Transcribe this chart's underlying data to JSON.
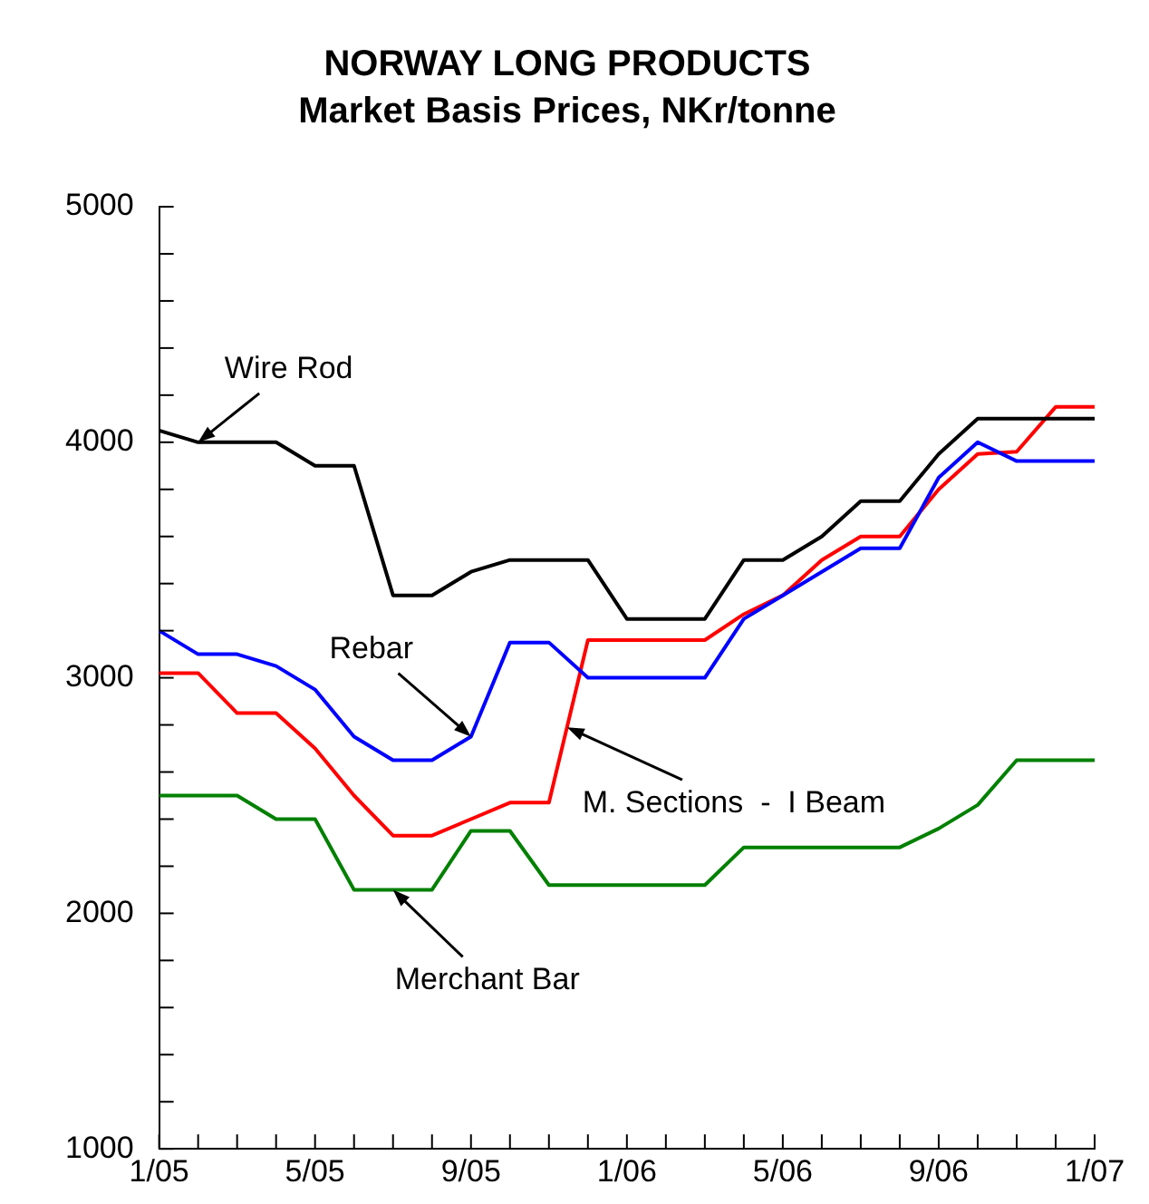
{
  "chart_data": {
    "type": "line",
    "title": "NORWAY LONG PRODUCTS",
    "subtitle": "Market Basis Prices, NKr/tonne",
    "x": [
      "2005-01",
      "2005-02",
      "2005-03",
      "2005-04",
      "2005-05",
      "2005-06",
      "2005-07",
      "2005-08",
      "2005-09",
      "2005-10",
      "2005-11",
      "2005-12",
      "2006-01",
      "2006-02",
      "2006-03",
      "2006-04",
      "2006-05",
      "2006-06",
      "2006-07",
      "2006-08",
      "2006-09",
      "2006-10",
      "2006-11",
      "2006-12",
      "2007-01"
    ],
    "series": [
      {
        "color": "#000000",
        "values": [
          4050,
          4000,
          4000,
          4000,
          3900,
          3900,
          3350,
          3350,
          3450,
          3500,
          3500,
          3500,
          3250,
          3250,
          3250,
          3500,
          3500,
          3600,
          3750,
          3750,
          3950,
          4100,
          4100,
          4100,
          4100
        ]
      },
      {
        "color": "#0000ff",
        "values": [
          3200,
          3100,
          3100,
          3050,
          2950,
          2750,
          2650,
          2650,
          2750,
          3150,
          3150,
          3000,
          3000,
          3000,
          3000,
          3250,
          3350,
          3450,
          3550,
          3550,
          3850,
          4000,
          3920,
          3920,
          3920
        ]
      },
      {
        "color": "#ff0000",
        "values": [
          3020,
          3020,
          2850,
          2850,
          2700,
          2500,
          2330,
          2330,
          2400,
          2470,
          2470,
          3160,
          3160,
          3160,
          3160,
          3270,
          3350,
          3500,
          3600,
          3600,
          3800,
          3950,
          3960,
          4150,
          4150
        ]
      },
      {
        "color": "#008000",
        "values": [
          2500,
          2500,
          2500,
          2400,
          2400,
          2100,
          2100,
          2100,
          2350,
          2350,
          2120,
          2120,
          2120,
          2120,
          2120,
          2280,
          2280,
          2280,
          2280,
          2280,
          2360,
          2460,
          2650,
          2650,
          2650
        ]
      }
    ],
    "annotations": [
      {
        "text": "Wire Rod",
        "x": "2005-02",
        "y": 4000
      },
      {
        "text": "Rebar",
        "x": "2005-09",
        "y": 2750
      },
      {
        "text": "M. Sections  -  I Beam",
        "x": "2005-11-15",
        "y": 2790
      },
      {
        "text": "Merchant Bar",
        "x": "2005-07",
        "y": 2100
      }
    ],
    "xlim": [
      "2005-01",
      "2007-01"
    ],
    "xticks": [
      {
        "value": "2005-01",
        "label": "1/05"
      },
      {
        "value": "2005-02",
        "label": null
      },
      {
        "value": "2005-03",
        "label": null
      },
      {
        "value": "2005-04",
        "label": null
      },
      {
        "value": "2005-05",
        "label": "5/05"
      },
      {
        "value": "2005-06",
        "label": null
      },
      {
        "value": "2005-07",
        "label": null
      },
      {
        "value": "2005-08",
        "label": null
      },
      {
        "value": "2005-09",
        "label": "9/05"
      },
      {
        "value": "2005-10",
        "label": null
      },
      {
        "value": "2005-11",
        "label": null
      },
      {
        "value": "2005-12",
        "label": null
      },
      {
        "value": "2006-01",
        "label": "1/06"
      },
      {
        "value": "2006-02",
        "label": null
      },
      {
        "value": "2006-03",
        "label": null
      },
      {
        "value": "2006-04",
        "label": null
      },
      {
        "value": "2006-05",
        "label": "5/06"
      },
      {
        "value": "2006-06",
        "label": null
      },
      {
        "value": "2006-07",
        "label": null
      },
      {
        "value": "2006-08",
        "label": null
      },
      {
        "value": "2006-09",
        "label": "9/06"
      },
      {
        "value": "2006-10",
        "label": null
      },
      {
        "value": "2006-11",
        "label": null
      },
      {
        "value": "2006-12",
        "label": null
      },
      {
        "value": "2007-01",
        "label": "1/07"
      }
    ],
    "ylim": [
      1000,
      5000
    ],
    "yticks": [
      1000,
      {
        "value": 1200,
        "label": null
      },
      {
        "value": 1400,
        "label": null
      },
      {
        "value": 1600,
        "label": null
      },
      {
        "value": 1800,
        "label": null
      },
      2000,
      {
        "value": 2200,
        "label": null
      },
      {
        "value": 2400,
        "label": null
      },
      {
        "value": 2600,
        "label": null
      },
      {
        "value": 2800,
        "label": null
      },
      3000,
      {
        "value": 3200,
        "label": null
      },
      {
        "value": 3400,
        "label": null
      },
      {
        "value": 3600,
        "label": null
      },
      {
        "value": 3800,
        "label": null
      },
      4000,
      {
        "value": 4200,
        "label": null
      },
      {
        "value": 4400,
        "label": null
      },
      {
        "value": 4600,
        "label": null
      },
      {
        "value": 4800,
        "label": null
      },
      5000
    ],
    "grid": false,
    "legend": false,
    "marker": "none",
    "line_style": "solid"
  }
}
